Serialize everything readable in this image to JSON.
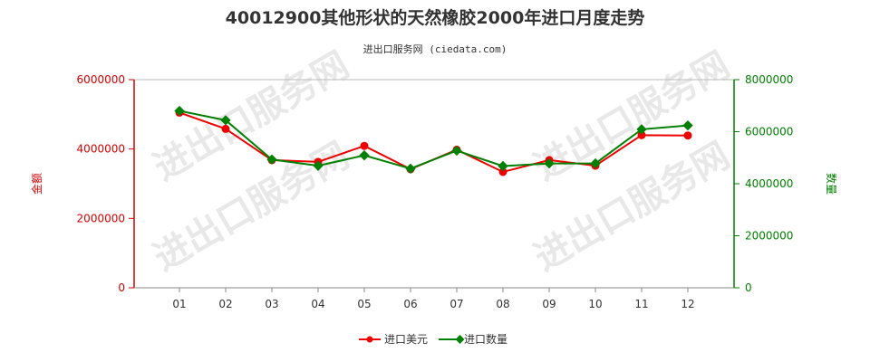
{
  "chart_data": {
    "type": "line",
    "title": "40012900其他形状的天然橡胶2000年进口月度走势",
    "subtitle": "进出口服务网 (ciedata.com)",
    "watermark": "进出口服务网",
    "categories": [
      "01",
      "02",
      "03",
      "04",
      "05",
      "06",
      "07",
      "08",
      "09",
      "10",
      "11",
      "12"
    ],
    "y_left": {
      "label": "金额",
      "ylim": [
        0,
        6000000
      ],
      "ticks": [
        "0",
        "2000000",
        "4000000",
        "6000000"
      ],
      "color": "#d40000"
    },
    "y_right": {
      "label": "数量",
      "ylim": [
        0,
        8000000
      ],
      "ticks": [
        "0",
        "2000000",
        "4000000",
        "6000000",
        "8000000"
      ],
      "color": "#008000"
    },
    "series": [
      {
        "name": "进口美元",
        "axis": "left",
        "color": "#ee0000",
        "values": [
          5050000,
          4580000,
          3680000,
          3630000,
          4090000,
          3420000,
          3980000,
          3340000,
          3680000,
          3520000,
          4400000,
          4390000
        ]
      },
      {
        "name": "进口数量",
        "axis": "right",
        "color": "#008000",
        "values": [
          6800000,
          6440000,
          4930000,
          4690000,
          5090000,
          4580000,
          5270000,
          4680000,
          4780000,
          4780000,
          6090000,
          6240000
        ]
      }
    ],
    "legend_position": "bottom-center",
    "grid": false
  }
}
